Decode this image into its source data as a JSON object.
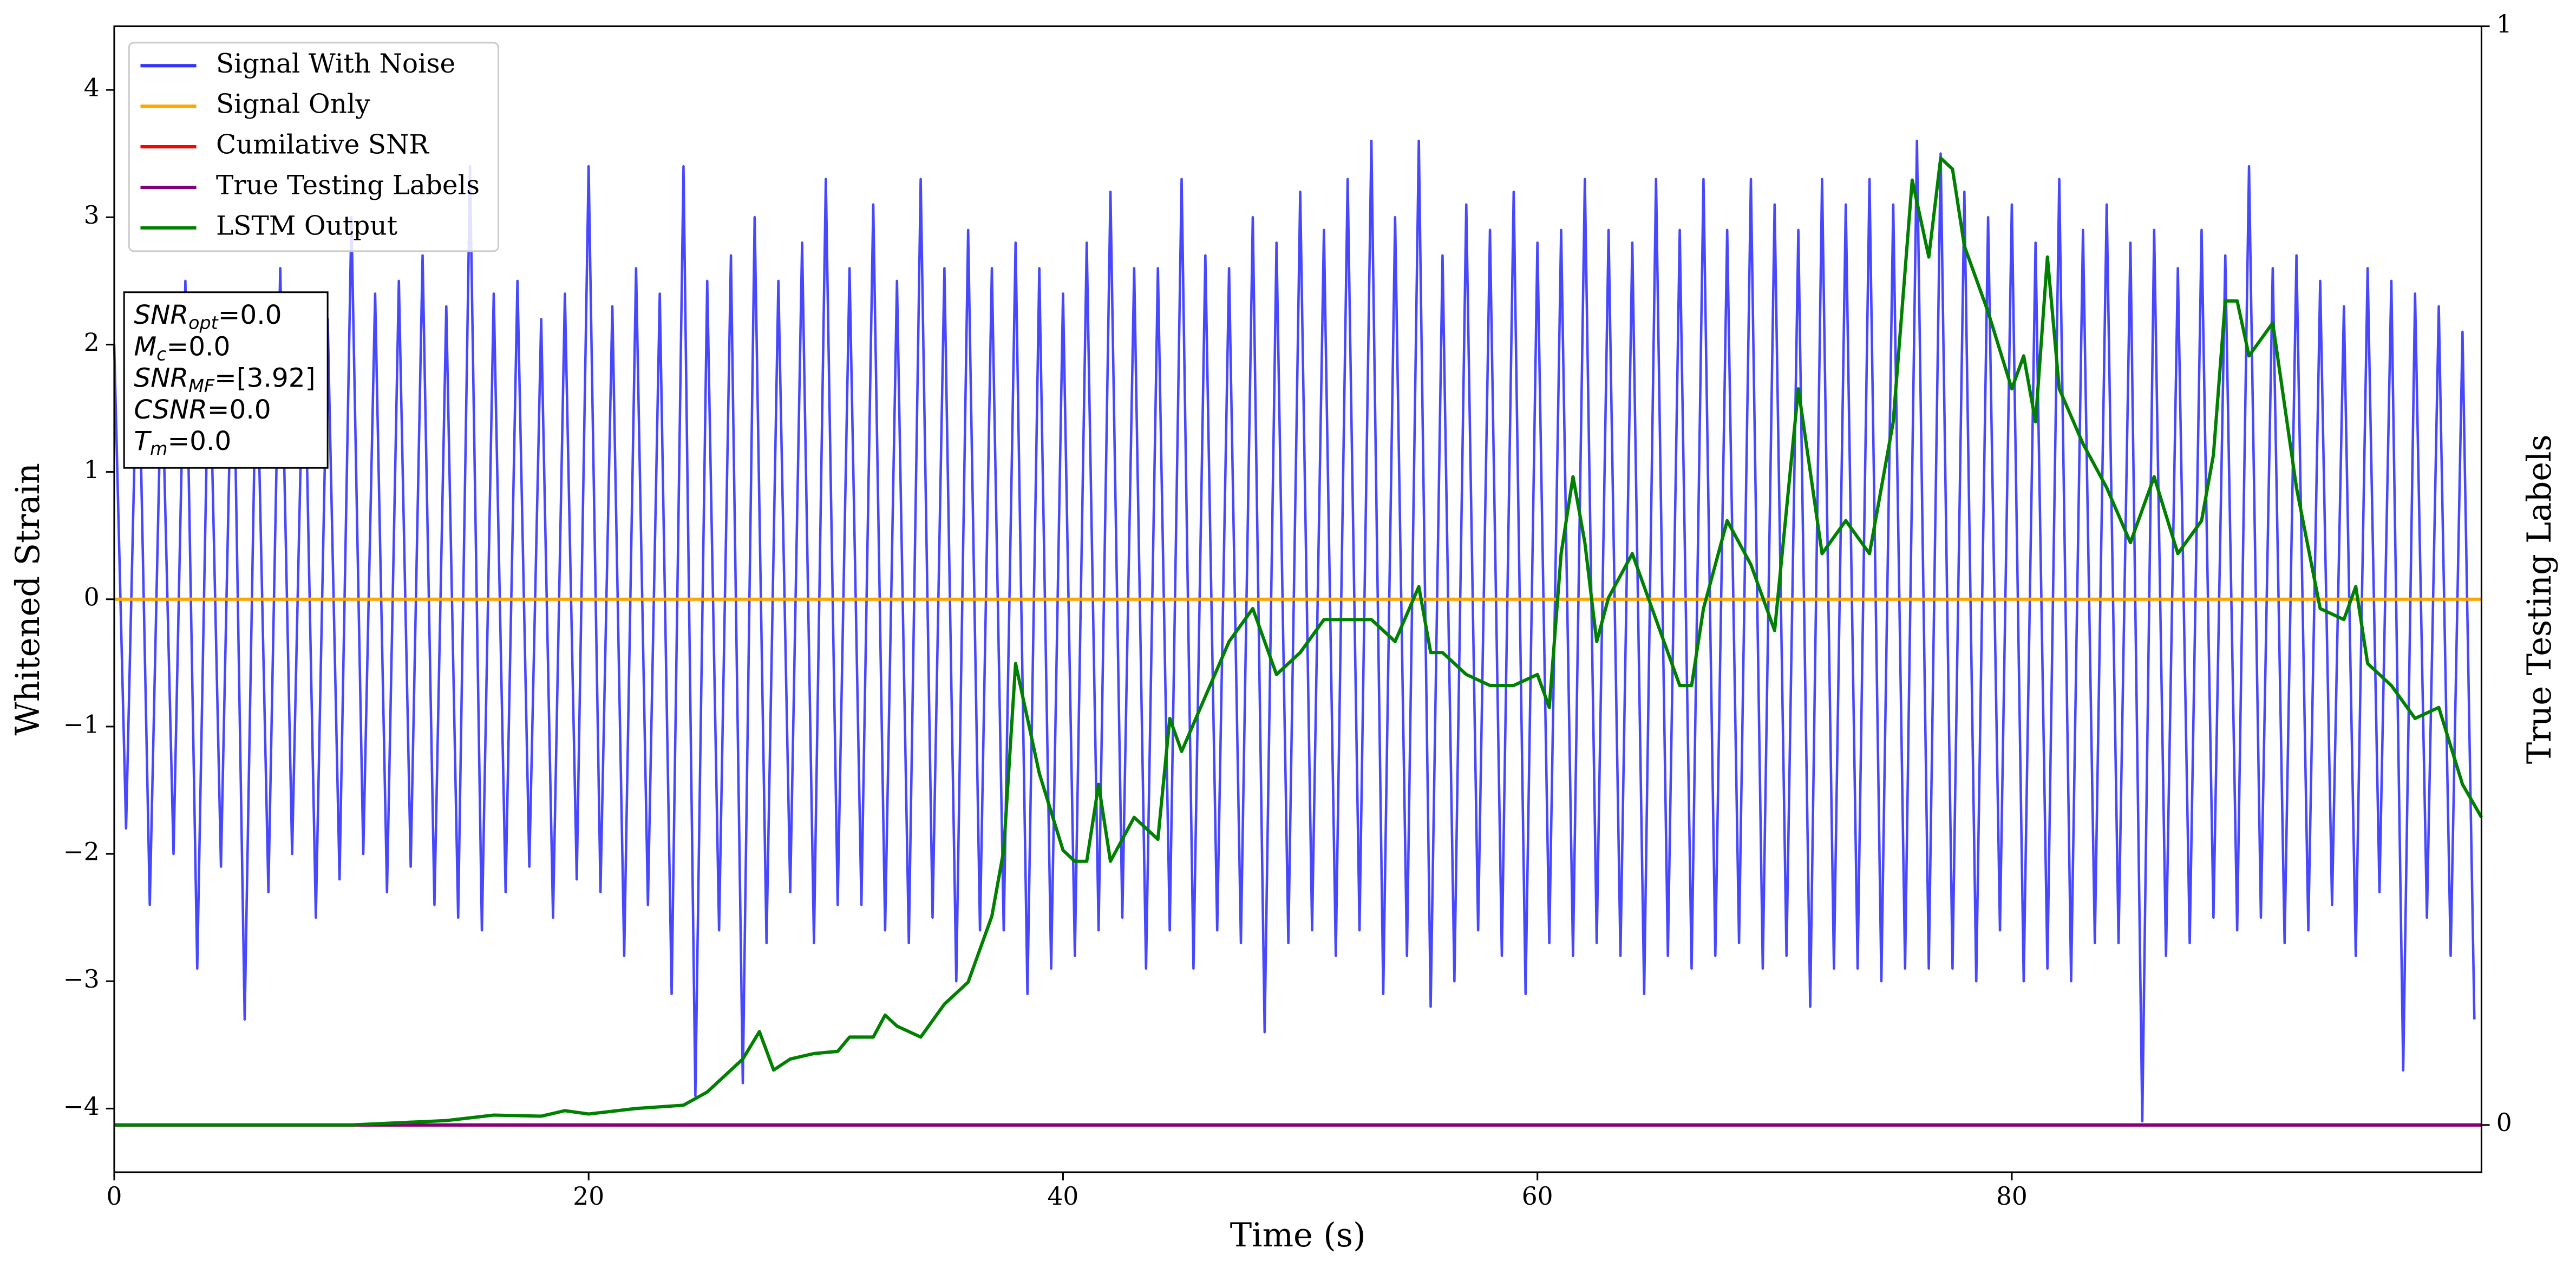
{
  "chart_data": {
    "type": "line",
    "x_label": "Time (s)",
    "y_label": "Whitened Strain",
    "y2_label": "True Testing Labels",
    "xlim": [
      0,
      99.8
    ],
    "xticks": [
      0,
      20,
      40,
      60,
      80
    ],
    "ylim": [
      -4.5,
      4.5
    ],
    "yticks": [
      -4,
      -3,
      -2,
      -1,
      0,
      1,
      2,
      3,
      4
    ],
    "y2lim": [
      -0.043,
      1
    ],
    "y2ticks": [
      0,
      1
    ],
    "legend": "upper left",
    "annotation": [
      {
        "base": "SNR",
        "sub": "opt",
        "text": "=0.0"
      },
      {
        "base": "M",
        "sub": "c",
        "text": "=0.0"
      },
      {
        "base": "SNR",
        "sub": "MF",
        "text": "=[3.92]"
      },
      {
        "base": "CSNR",
        "sub": "",
        "text": "=0.0"
      },
      {
        "base": "T",
        "sub": "m",
        "text": "=0.0"
      }
    ],
    "series": [
      {
        "name": "Signal With Noise",
        "color": "#3333ff",
        "x": [
          0,
          0.5,
          1,
          1.5,
          2,
          2.5,
          3,
          3.5,
          4,
          4.5,
          5,
          5.5,
          6,
          6.5,
          7,
          7.5,
          8,
          8.5,
          9,
          9.5,
          10,
          10.5,
          11,
          11.5,
          12,
          12.5,
          13,
          13.5,
          14,
          14.5,
          15,
          15.5,
          16,
          16.5,
          17,
          17.5,
          18,
          18.5,
          19,
          19.5,
          20,
          20.5,
          21,
          21.5,
          22,
          22.5,
          23,
          23.5,
          24,
          24.5,
          25,
          25.5,
          26,
          26.5,
          27,
          27.5,
          28,
          28.5,
          29,
          29.5,
          30,
          30.5,
          31,
          31.5,
          32,
          32.5,
          33,
          33.5,
          34,
          34.5,
          35,
          35.5,
          36,
          36.5,
          37,
          37.5,
          38,
          38.5,
          39,
          39.5,
          40,
          40.5,
          41,
          41.5,
          42,
          42.5,
          43,
          43.5,
          44,
          44.5,
          45,
          45.5,
          46,
          46.5,
          47,
          47.5,
          48,
          48.5,
          49,
          49.5,
          50,
          50.5,
          51,
          51.5,
          52,
          52.5,
          53,
          53.5,
          54,
          54.5,
          55,
          55.5,
          56,
          56.5,
          57,
          57.5,
          58,
          58.5,
          59,
          59.5,
          60,
          60.5,
          61,
          61.5,
          62,
          62.5,
          63,
          63.5,
          64,
          64.5,
          65,
          65.5,
          66,
          66.5,
          67,
          67.5,
          68,
          68.5,
          69,
          69.5,
          70,
          70.5,
          71,
          71.5,
          72,
          72.5,
          73,
          73.5,
          74,
          74.5,
          75,
          75.5,
          76,
          76.5,
          77,
          77.5,
          78,
          78.5,
          79,
          79.5,
          80,
          80.5,
          81,
          81.5,
          82,
          82.5,
          83,
          83.5,
          84,
          84.5,
          85,
          85.5,
          86,
          86.5,
          87,
          87.5,
          88,
          88.5,
          89,
          89.5,
          90,
          90.5,
          91,
          91.5,
          92,
          92.5,
          93,
          93.5,
          94,
          94.5,
          95,
          95.5,
          96,
          96.5,
          97,
          97.5,
          98,
          98.5,
          99,
          99.5
        ],
        "values": [
          2.0,
          -1.8,
          2.3,
          -2.4,
          1.9,
          -2.0,
          2.5,
          -2.9,
          2.2,
          -2.1,
          2.4,
          -3.3,
          2.1,
          -2.3,
          2.6,
          -2.0,
          2.3,
          -2.5,
          2.2,
          -2.2,
          3.0,
          -2.0,
          2.4,
          -2.3,
          2.5,
          -2.1,
          2.7,
          -2.4,
          2.3,
          -2.5,
          3.4,
          -2.6,
          2.4,
          -2.3,
          2.5,
          -2.1,
          2.2,
          -2.5,
          2.4,
          -2.2,
          3.4,
          -2.3,
          2.3,
          -2.8,
          2.6,
          -2.4,
          2.4,
          -3.1,
          3.4,
          -3.9,
          2.5,
          -2.6,
          2.7,
          -3.8,
          3.0,
          -2.7,
          2.5,
          -2.3,
          2.8,
          -2.7,
          3.3,
          -2.4,
          2.6,
          -2.4,
          3.1,
          -2.6,
          2.5,
          -2.7,
          3.3,
          -2.5,
          2.6,
          -3.0,
          2.9,
          -2.6,
          2.6,
          -2.6,
          2.8,
          -3.1,
          2.6,
          -2.9,
          2.4,
          -2.8,
          2.8,
          -2.6,
          3.2,
          -2.5,
          2.6,
          -2.9,
          2.6,
          -2.6,
          3.3,
          -2.9,
          2.7,
          -2.6,
          2.6,
          -2.7,
          3.0,
          -3.4,
          2.8,
          -2.7,
          3.2,
          -2.6,
          2.9,
          -2.8,
          3.3,
          -2.6,
          3.6,
          -3.1,
          3.0,
          -2.8,
          3.6,
          -3.2,
          2.7,
          -3.0,
          3.1,
          -2.6,
          2.9,
          -2.8,
          3.2,
          -3.1,
          2.8,
          -2.7,
          2.9,
          -2.8,
          3.3,
          -2.7,
          2.9,
          -2.8,
          2.8,
          -3.1,
          3.3,
          -2.8,
          2.9,
          -2.9,
          3.3,
          -2.8,
          2.9,
          -2.7,
          3.3,
          -2.9,
          3.1,
          -2.8,
          2.9,
          -3.2,
          3.3,
          -2.9,
          3.1,
          -2.9,
          3.3,
          -3.0,
          3.1,
          -2.9,
          3.6,
          -2.9,
          3.5,
          -2.9,
          3.2,
          -3.0,
          3.0,
          -2.6,
          3.1,
          -3.0,
          2.8,
          -2.9,
          3.3,
          -3.0,
          2.9,
          -2.7,
          3.1,
          -2.7,
          2.8,
          -4.1,
          2.9,
          -2.8,
          2.6,
          -2.7,
          2.9,
          -2.5,
          2.7,
          -2.6,
          3.4,
          -2.5,
          2.6,
          -2.7,
          2.7,
          -2.6,
          2.5,
          -2.4,
          2.3,
          -2.8,
          2.6,
          -2.3,
          2.5,
          -3.7,
          2.4,
          -2.5,
          2.3,
          -2.8,
          2.1,
          -3.3
        ]
      },
      {
        "name": "Signal Only",
        "color": "#ffa500",
        "x": [
          0,
          99.8
        ],
        "values": [
          0,
          0
        ]
      },
      {
        "name": "Cumilative SNR",
        "color": "#ff0000",
        "axis": "y2",
        "x": [
          0,
          99.8
        ],
        "values": [
          0,
          0
        ]
      },
      {
        "name": "True Testing Labels",
        "color": "#800080",
        "axis": "y2",
        "x": [
          0,
          99.8
        ],
        "values": [
          0,
          0
        ]
      },
      {
        "name": "LSTM Output",
        "color": "#008000",
        "axis": "y2",
        "x": [
          0,
          10,
          14,
          16,
          18,
          19,
          20,
          22,
          24,
          25,
          26,
          26.5,
          27.2,
          27.8,
          28.5,
          29.5,
          30.5,
          31,
          32,
          32.5,
          33,
          34,
          35,
          36,
          37,
          37.5,
          38,
          38.4,
          39,
          40,
          40.5,
          41,
          41.5,
          42,
          43,
          44,
          44.5,
          45,
          46,
          47,
          48,
          49,
          50,
          51,
          52,
          53,
          54,
          55,
          55.5,
          56,
          57,
          58,
          59,
          60,
          60.5,
          61,
          61.5,
          62,
          62.5,
          63,
          64,
          65,
          66,
          66.5,
          67,
          68,
          69,
          70,
          71,
          72,
          73,
          74,
          75,
          75.8,
          76.5,
          77,
          77.5,
          78,
          79,
          80,
          80.5,
          81,
          81.5,
          82,
          83,
          84,
          85,
          86,
          87,
          88,
          88.5,
          89,
          89.5,
          90,
          91,
          92,
          93,
          94,
          94.5,
          95,
          96,
          97,
          98,
          99,
          99.8
        ],
        "values": [
          0,
          0,
          0.004,
          0.009,
          0.008,
          0.013,
          0.01,
          0.015,
          0.018,
          0.03,
          0.05,
          0.06,
          0.085,
          0.05,
          0.06,
          0.065,
          0.067,
          0.08,
          0.08,
          0.1,
          0.09,
          0.08,
          0.11,
          0.13,
          0.19,
          0.25,
          0.42,
          0.38,
          0.32,
          0.25,
          0.24,
          0.24,
          0.31,
          0.24,
          0.28,
          0.26,
          0.37,
          0.34,
          0.39,
          0.44,
          0.47,
          0.41,
          0.43,
          0.46,
          0.46,
          0.46,
          0.44,
          0.49,
          0.43,
          0.43,
          0.41,
          0.4,
          0.4,
          0.41,
          0.38,
          0.52,
          0.59,
          0.53,
          0.44,
          0.48,
          0.52,
          0.46,
          0.4,
          0.4,
          0.47,
          0.55,
          0.51,
          0.45,
          0.67,
          0.52,
          0.55,
          0.52,
          0.64,
          0.86,
          0.79,
          0.88,
          0.87,
          0.8,
          0.74,
          0.67,
          0.7,
          0.64,
          0.79,
          0.67,
          0.62,
          0.58,
          0.53,
          0.59,
          0.52,
          0.55,
          0.61,
          0.75,
          0.75,
          0.7,
          0.73,
          0.58,
          0.47,
          0.46,
          0.49,
          0.42,
          0.4,
          0.37,
          0.38,
          0.31,
          0.28
        ]
      }
    ]
  }
}
